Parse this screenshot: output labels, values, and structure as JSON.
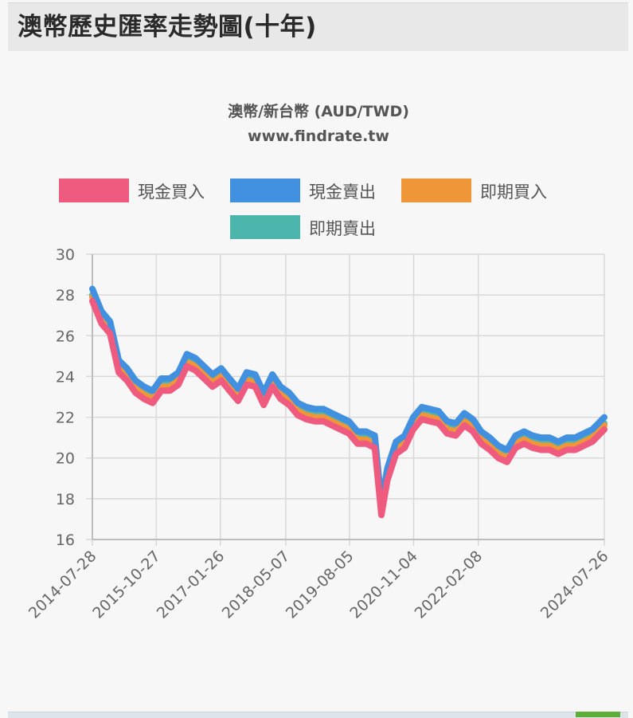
{
  "page": {
    "title": "澳幣歷史匯率走勢圖(十年)"
  },
  "chart_data": {
    "type": "line",
    "title": "澳幣/新台幣 (AUD/TWD)",
    "subtitle": "www.findrate.tw",
    "legend_position": "top",
    "grid": true,
    "ylim": [
      16,
      30
    ],
    "yticks": [
      16,
      18,
      20,
      22,
      24,
      26,
      28,
      30
    ],
    "xlim": [
      "2014-07-28",
      "2024-07-26"
    ],
    "xticks": [
      "2014-07-28",
      "2015-10-27",
      "2017-01-26",
      "2018-05-07",
      "2019-08-05",
      "2020-11-04",
      "2022-02-08",
      "2024-07-26"
    ],
    "x": [
      "2014-07-28",
      "2014-10-01",
      "2014-12-01",
      "2015-02-01",
      "2015-04-01",
      "2015-06-01",
      "2015-08-01",
      "2015-10-01",
      "2015-12-01",
      "2016-02-01",
      "2016-04-01",
      "2016-06-01",
      "2016-08-01",
      "2016-10-01",
      "2016-12-01",
      "2017-02-01",
      "2017-04-01",
      "2017-06-01",
      "2017-08-01",
      "2017-10-01",
      "2017-12-01",
      "2018-02-01",
      "2018-04-01",
      "2018-06-01",
      "2018-08-01",
      "2018-10-01",
      "2018-12-01",
      "2019-02-01",
      "2019-04-01",
      "2019-06-01",
      "2019-08-01",
      "2019-10-01",
      "2019-12-01",
      "2020-02-01",
      "2020-03-19",
      "2020-05-01",
      "2020-07-01",
      "2020-09-01",
      "2020-11-01",
      "2021-01-01",
      "2021-03-01",
      "2021-05-01",
      "2021-07-01",
      "2021-09-01",
      "2021-11-01",
      "2022-01-01",
      "2022-03-01",
      "2022-05-01",
      "2022-07-01",
      "2022-09-01",
      "2022-11-01",
      "2023-01-01",
      "2023-03-01",
      "2023-05-01",
      "2023-07-01",
      "2023-09-01",
      "2023-11-01",
      "2024-01-01",
      "2024-03-01",
      "2024-05-01",
      "2024-07-26"
    ],
    "series": [
      {
        "name": "現金買入",
        "color": "#ef5b7e",
        "values": [
          27.7,
          26.6,
          26.1,
          24.2,
          23.8,
          23.2,
          22.9,
          22.7,
          23.3,
          23.3,
          23.6,
          24.5,
          24.3,
          23.9,
          23.5,
          23.8,
          23.3,
          22.8,
          23.6,
          23.5,
          22.6,
          23.5,
          22.9,
          22.6,
          22.1,
          21.9,
          21.8,
          21.8,
          21.6,
          21.4,
          21.2,
          20.7,
          20.7,
          20.5,
          17.2,
          18.9,
          20.2,
          20.5,
          21.4,
          21.9,
          21.8,
          21.7,
          21.2,
          21.1,
          21.6,
          21.3,
          20.7,
          20.4,
          20.0,
          19.8,
          20.5,
          20.7,
          20.5,
          20.4,
          20.4,
          20.2,
          20.4,
          20.4,
          20.6,
          20.8,
          21.4
        ]
      },
      {
        "name": "現金賣出",
        "color": "#4290e0",
        "values": [
          28.3,
          27.2,
          26.7,
          24.8,
          24.4,
          23.8,
          23.5,
          23.3,
          23.9,
          23.9,
          24.2,
          25.1,
          24.9,
          24.5,
          24.1,
          24.4,
          23.9,
          23.4,
          24.2,
          24.1,
          23.2,
          24.1,
          23.5,
          23.2,
          22.7,
          22.5,
          22.4,
          22.4,
          22.2,
          22.0,
          21.8,
          21.3,
          21.3,
          21.1,
          17.8,
          19.5,
          20.8,
          21.1,
          22.0,
          22.5,
          22.4,
          22.3,
          21.8,
          21.7,
          22.2,
          21.9,
          21.3,
          21.0,
          20.6,
          20.4,
          21.1,
          21.3,
          21.1,
          21.0,
          21.0,
          20.8,
          21.0,
          21.0,
          21.2,
          21.4,
          22.0
        ]
      },
      {
        "name": "即期買入",
        "color": "#ef9638",
        "values": [
          27.9,
          26.8,
          26.3,
          24.4,
          24.0,
          23.4,
          23.1,
          22.9,
          23.5,
          23.5,
          23.8,
          24.7,
          24.5,
          24.1,
          23.7,
          24.0,
          23.5,
          23.0,
          23.8,
          23.7,
          22.8,
          23.7,
          23.1,
          22.8,
          22.3,
          22.1,
          22.0,
          22.0,
          21.8,
          21.6,
          21.4,
          20.9,
          20.9,
          20.7,
          17.4,
          19.1,
          20.4,
          20.7,
          21.6,
          22.1,
          22.0,
          21.9,
          21.4,
          21.3,
          21.8,
          21.5,
          20.9,
          20.6,
          20.2,
          20.0,
          20.7,
          20.9,
          20.7,
          20.6,
          20.6,
          20.4,
          20.6,
          20.6,
          20.8,
          21.0,
          21.6
        ]
      },
      {
        "name": "即期賣出",
        "color": "#4db6ac",
        "values": [
          28.0,
          26.9,
          26.4,
          24.5,
          24.1,
          23.5,
          23.2,
          23.0,
          23.6,
          23.6,
          23.9,
          24.8,
          24.6,
          24.2,
          23.8,
          24.1,
          23.6,
          23.1,
          23.9,
          23.8,
          22.9,
          23.8,
          23.2,
          22.9,
          22.4,
          22.2,
          22.1,
          22.1,
          21.9,
          21.7,
          21.5,
          21.0,
          21.0,
          20.8,
          17.5,
          19.2,
          20.5,
          20.8,
          21.7,
          22.2,
          22.1,
          22.0,
          21.5,
          21.4,
          21.9,
          21.6,
          21.0,
          20.7,
          20.3,
          20.1,
          20.8,
          21.0,
          20.8,
          20.7,
          20.7,
          20.5,
          20.7,
          20.7,
          20.9,
          21.1,
          21.7
        ]
      }
    ]
  }
}
